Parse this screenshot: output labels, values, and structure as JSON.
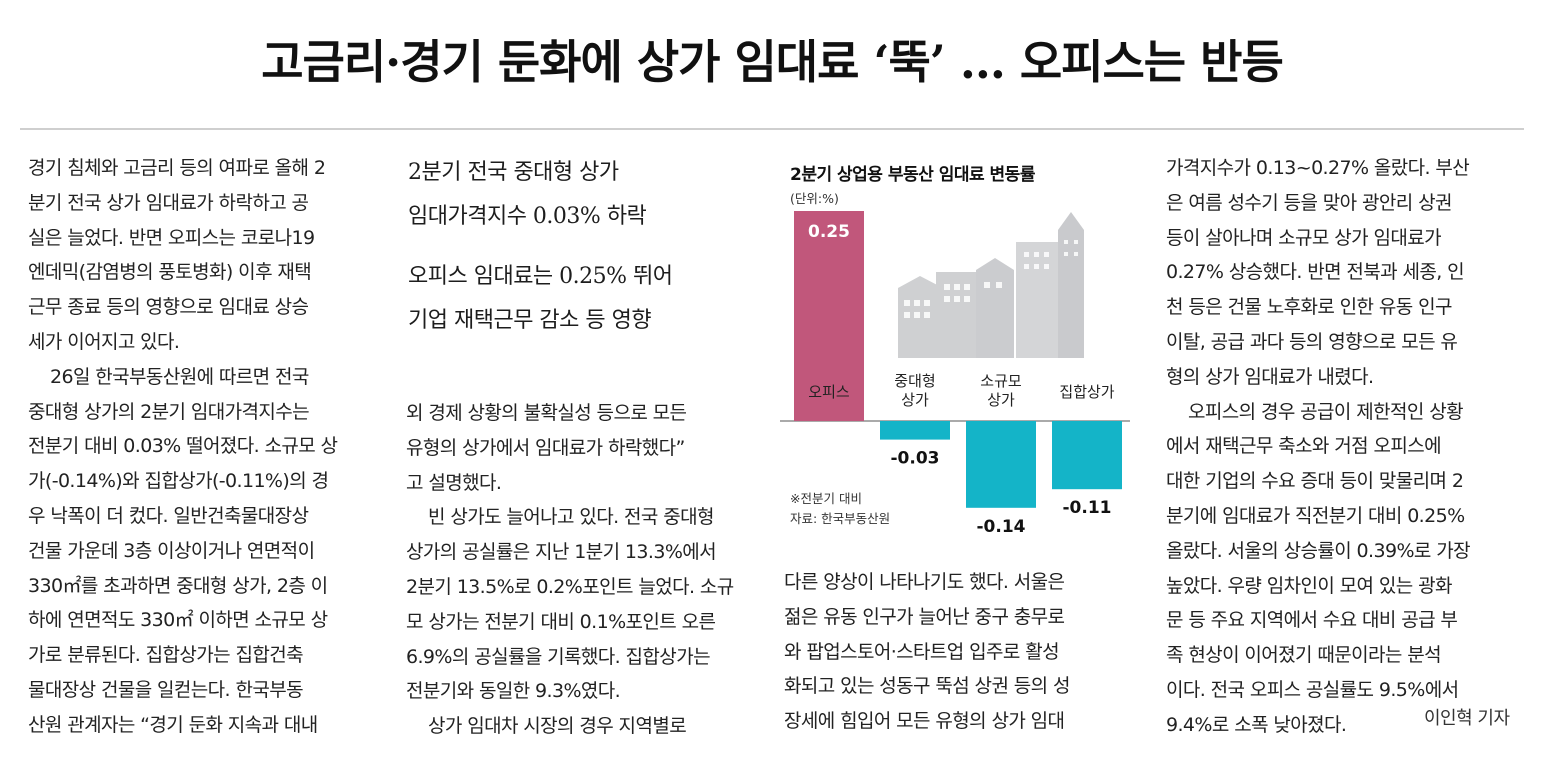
{
  "headline": "고금리·경기 둔화에 상가 임대료 ‘뚝’ … 오피스는 반등",
  "column1": [
    {
      "text": "경기 침체와 고금리 등의 여파로 올해 2",
      "indent": false
    },
    {
      "text": "분기 전국 상가 임대료가 하락하고 공",
      "indent": false
    },
    {
      "text": "실은 늘었다. 반면 오피스는 코로나19",
      "indent": false
    },
    {
      "text": "엔데믹(감염병의 풍토병화) 이후 재택",
      "indent": false
    },
    {
      "text": "근무 종료 등의 영향으로 임대료 상승",
      "indent": false
    },
    {
      "text": "세가 이어지고 있다.",
      "indent": false
    },
    {
      "text": "26일 한국부동산원에 따르면 전국",
      "indent": true
    },
    {
      "text": "중대형 상가의 2분기 임대가격지수는",
      "indent": false
    },
    {
      "text": "전분기 대비 0.03% 떨어졌다. 소규모 상",
      "indent": false
    },
    {
      "text": "가(-0.14%)와 집합상가(-0.11%)의 경",
      "indent": false
    },
    {
      "text": "우 낙폭이 더 컸다. 일반건축물대장상",
      "indent": false
    },
    {
      "text": "건물 가운데 3층 이상이거나 연면적이",
      "indent": false
    },
    {
      "text": "330㎡를 초과하면 중대형 상가, 2층 이",
      "indent": false
    },
    {
      "text": "하에 연면적도 330㎡ 이하면 소규모 상",
      "indent": false
    },
    {
      "text": "가로 분류된다. 집합상가는 집합건축",
      "indent": false
    },
    {
      "text": "물대장상 건물을 일컫는다. 한국부동",
      "indent": false
    },
    {
      "text": "산원 관계자는 “경기 둔화 지속과 대내",
      "indent": false
    }
  ],
  "deck": [
    "2분기 전국 중대형 상가",
    "임대가격지수 0.03% 하락",
    "오피스 임대료는 0.25% 뛰어",
    "기업 재택근무 감소 등 영향"
  ],
  "column2": [
    {
      "text": "외 경제 상황의 불확실성 등으로 모든",
      "indent": false
    },
    {
      "text": "유형의 상가에서 임대료가 하락했다”",
      "indent": false
    },
    {
      "text": "고 설명했다.",
      "indent": false
    },
    {
      "text": "빈 상가도 늘어나고 있다. 전국 중대형",
      "indent": true
    },
    {
      "text": "상가의 공실률은 지난 1분기 13.3%에서",
      "indent": false
    },
    {
      "text": "2분기 13.5%로 0.2%포인트 늘었다. 소규",
      "indent": false
    },
    {
      "text": "모 상가는 전분기 대비 0.1%포인트 오른",
      "indent": false
    },
    {
      "text": "6.9%의 공실률을 기록했다. 집합상가는",
      "indent": false
    },
    {
      "text": "전분기와 동일한 9.3%였다.",
      "indent": false
    },
    {
      "text": "상가 임대차 시장의 경우 지역별로",
      "indent": true
    }
  ],
  "column3": [
    {
      "text": "다른 양상이 나타나기도 했다. 서울은",
      "indent": false
    },
    {
      "text": "젊은 유동 인구가 늘어난 중구 충무로",
      "indent": false
    },
    {
      "text": "와 팝업스토어·스타트업 입주로 활성",
      "indent": false
    },
    {
      "text": "화되고 있는 성동구 뚝섬 상권 등의 성",
      "indent": false
    },
    {
      "text": "장세에 힘입어 모든 유형의 상가 임대",
      "indent": false
    }
  ],
  "column4": [
    {
      "text": "가격지수가 0.13~0.27% 올랐다. 부산",
      "indent": false
    },
    {
      "text": "은 여름 성수기 등을 맞아 광안리 상권",
      "indent": false
    },
    {
      "text": "등이 살아나며 소규모 상가 임대료가",
      "indent": false
    },
    {
      "text": "0.27% 상승했다. 반면 전북과 세종, 인",
      "indent": false
    },
    {
      "text": "천 등은 건물 노후화로 인한 유동 인구",
      "indent": false
    },
    {
      "text": "이탈, 공급 과다 등의 영향으로 모든 유",
      "indent": false
    },
    {
      "text": "형의 상가 임대료가 내렸다.",
      "indent": false
    },
    {
      "text": "오피스의 경우 공급이 제한적인 상황",
      "indent": true
    },
    {
      "text": "에서 재택근무 축소와 거점 오피스에",
      "indent": false
    },
    {
      "text": "대한 기업의 수요 증대 등이 맞물리며 2",
      "indent": false
    },
    {
      "text": "분기에 임대료가 직전분기 대비 0.25%",
      "indent": false
    },
    {
      "text": "올랐다. 서울의 상승률이 0.39%로 가장",
      "indent": false
    },
    {
      "text": "높았다. 우량 임차인이 모여 있는 광화",
      "indent": false
    },
    {
      "text": "문 등 주요 지역에서 수요 대비 공급 부",
      "indent": false
    },
    {
      "text": "족 현상이 이어졌기 때문이라는 분석",
      "indent": false
    },
    {
      "text": "이다. 전국 오피스 공실률도 9.5%에서",
      "indent": false
    },
    {
      "text": "9.4%로 소폭 낮아졌다.",
      "indent": false
    }
  ],
  "byline": "이인혁 기자",
  "chart_data": {
    "type": "bar",
    "title": "2분기 상업용 부동산 임대료 변동률",
    "unit": "(단위:%)",
    "categories": [
      "오피스",
      "중대형 상가",
      "소규모 상가",
      "집합상가"
    ],
    "category_lines": [
      [
        "오피스"
      ],
      [
        "중대형",
        "상가"
      ],
      [
        "소규모",
        "상가"
      ],
      [
        "집합상가"
      ]
    ],
    "values": [
      0.25,
      -0.03,
      -0.14,
      -0.11
    ],
    "value_labels": [
      "0.25",
      "-0.03",
      "-0.14",
      "-0.11"
    ],
    "colors": [
      "#c1577b",
      "#14b4c8",
      "#14b4c8",
      "#14b4c8"
    ],
    "note": "※전분기 대비",
    "source": "자료: 한국부동산원"
  }
}
